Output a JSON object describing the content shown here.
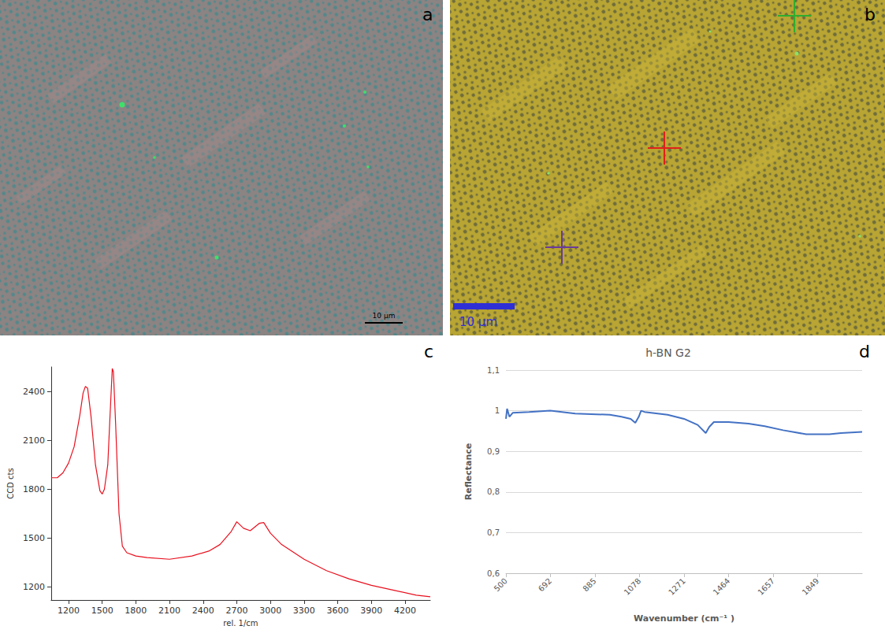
{
  "images": [
    {
      "panel": "a",
      "scale_bar": "10 µm"
    },
    {
      "panel": "b",
      "scale_bar": "10 µm"
    }
  ],
  "chart_data": [
    {
      "panel": "c",
      "type": "line",
      "x_label": "rel. 1/cm",
      "y_label": "CCD cts",
      "x": [
        1045,
        1100,
        1150,
        1200,
        1250,
        1300,
        1330,
        1350,
        1370,
        1400,
        1440,
        1480,
        1500,
        1520,
        1550,
        1570,
        1590,
        1600,
        1620,
        1650,
        1680,
        1720,
        1800,
        1900,
        2100,
        2300,
        2450,
        2550,
        2650,
        2700,
        2760,
        2820,
        2900,
        2940,
        3000,
        3100,
        3300,
        3500,
        3700,
        3900,
        4100,
        4300,
        4425
      ],
      "values": [
        1870,
        1870,
        1900,
        1960,
        2060,
        2250,
        2390,
        2430,
        2420,
        2250,
        1950,
        1790,
        1770,
        1800,
        1950,
        2250,
        2540,
        2520,
        2200,
        1650,
        1450,
        1410,
        1390,
        1380,
        1370,
        1390,
        1420,
        1460,
        1540,
        1600,
        1560,
        1545,
        1590,
        1595,
        1530,
        1460,
        1370,
        1300,
        1250,
        1210,
        1180,
        1150,
        1140
      ],
      "color": "#e8101e",
      "xlim": [
        1045,
        4425
      ],
      "xticks": [
        1200,
        1500,
        1800,
        2100,
        2400,
        2700,
        3000,
        3300,
        3600,
        3900,
        4200
      ],
      "ylim": [
        1120,
        2550
      ],
      "yticks": [
        1200,
        1500,
        1800,
        2100,
        2400
      ],
      "grid": false
    },
    {
      "panel": "d",
      "type": "line",
      "title": "h-BN G2",
      "x_label": "Wavenumber (cm⁻¹ )",
      "y_label": "Reflectance",
      "x": [
        500,
        505,
        515,
        530,
        600,
        692,
        800,
        950,
        1000,
        1040,
        1060,
        1075,
        1085,
        1100,
        1200,
        1271,
        1330,
        1365,
        1380,
        1400,
        1464,
        1550,
        1620,
        1700,
        1800,
        1900,
        1950,
        2042
      ],
      "values": [
        0.98,
        1.005,
        0.985,
        0.995,
        0.997,
        1.0,
        0.993,
        0.99,
        0.985,
        0.98,
        0.97,
        0.985,
        1.0,
        0.997,
        0.99,
        0.98,
        0.965,
        0.945,
        0.96,
        0.972,
        0.972,
        0.968,
        0.962,
        0.952,
        0.942,
        0.942,
        0.945,
        0.948
      ],
      "color": "#4472c4",
      "xlim": [
        500,
        2042
      ],
      "xticks": [
        500,
        692,
        885,
        1078,
        1271,
        1464,
        1657,
        1849
      ],
      "ylim": [
        0.6,
        1.1
      ],
      "yticks": [
        {
          "value": 0.6,
          "label": "0,6"
        },
        {
          "value": 0.7,
          "label": "0,7"
        },
        {
          "value": 0.8,
          "label": "0,8"
        },
        {
          "value": 0.9,
          "label": "0,9"
        },
        1,
        {
          "value": 1.1,
          "label": "1,1"
        }
      ],
      "grid": true
    }
  ]
}
